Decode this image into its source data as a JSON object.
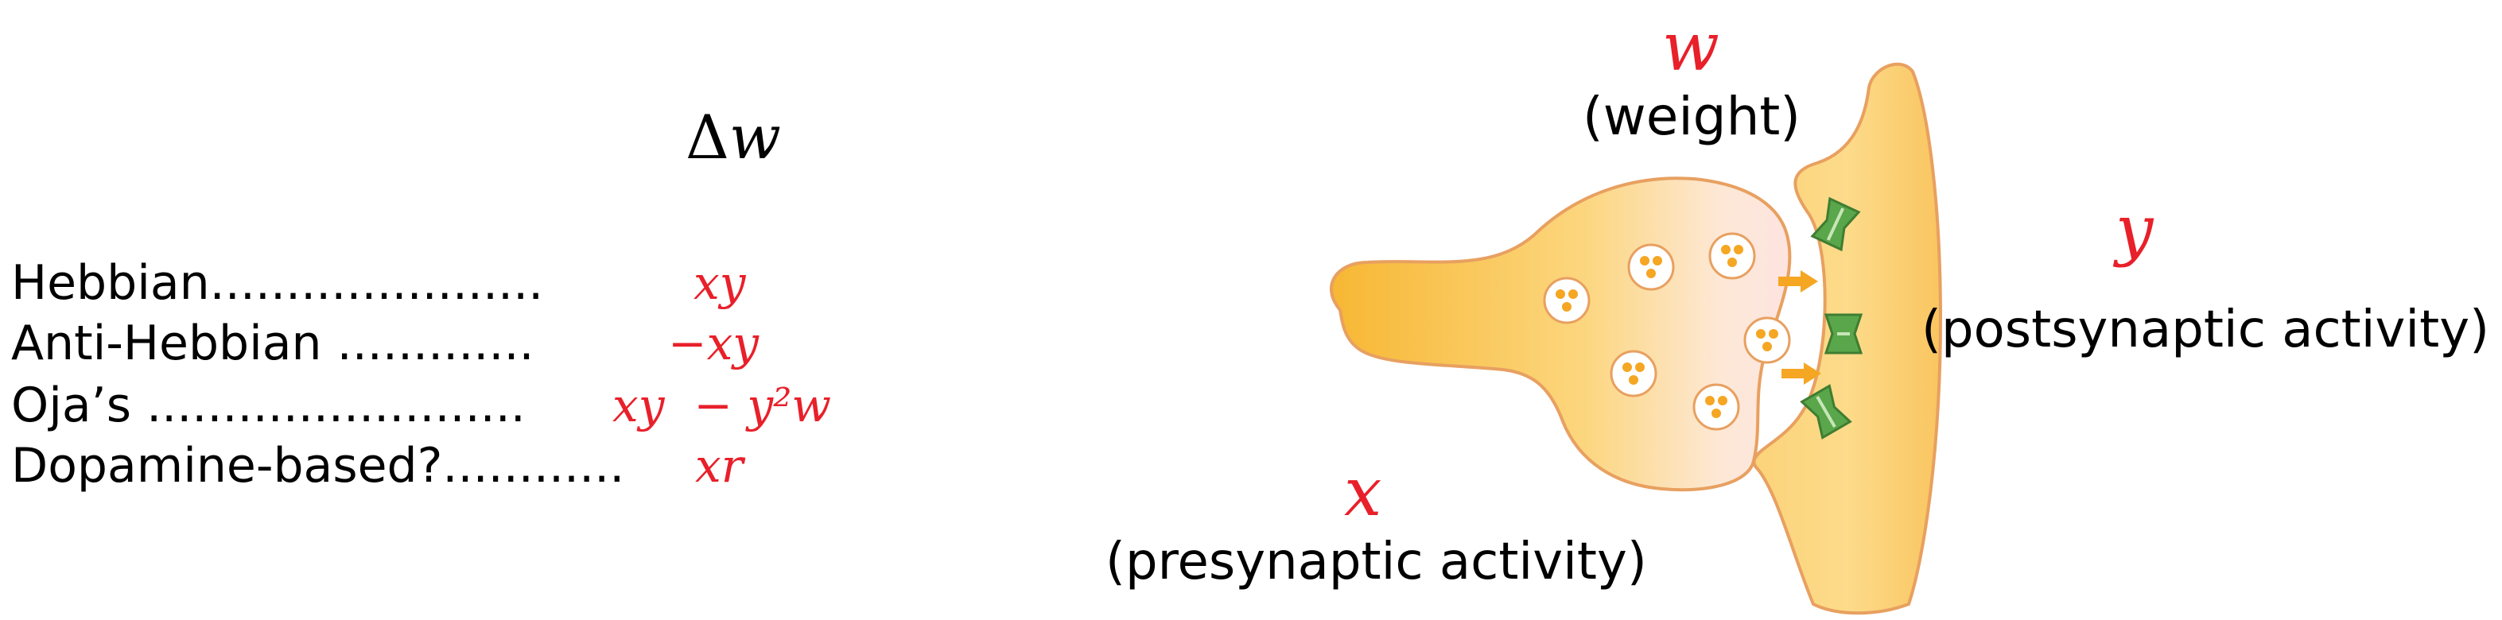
{
  "table": {
    "header_symbol": "Δ",
    "header_var": "w",
    "rows": [
      {
        "name": "Hebbian......................",
        "formula": "xy"
      },
      {
        "name": "Anti-Hebbian .............",
        "formula": "−xy"
      },
      {
        "name": "Oja’s .........................",
        "formula": "xy  − y²w"
      },
      {
        "name": "Dopamine-based?............",
        "formula": "xr"
      }
    ]
  },
  "diagram": {
    "weight_var": "w",
    "weight_label": "(weight)",
    "post_var": "y",
    "post_label": "(postsynaptic activity)",
    "pre_var": "x",
    "pre_label": "(presynaptic activity)"
  },
  "colors": {
    "math_red": "#e8202a",
    "neuron_fill": "#fcd67e",
    "neuron_fill_dark": "#f7b733",
    "neuron_edge": "#e8a060",
    "receptor_green": "#5aa64a",
    "arrow_orange": "#f5a623"
  }
}
